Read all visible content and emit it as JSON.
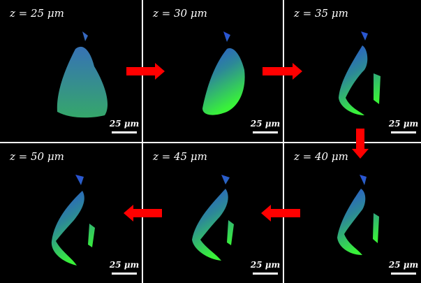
{
  "panels": [
    {
      "label": "z = 25 μm",
      "scale_bar": "25 μm"
    },
    {
      "label": "z = 30 μm",
      "scale_bar": "25 μm"
    },
    {
      "label": "z = 35 μm",
      "scale_bar": "25 μm"
    },
    {
      "label": "z = 40 μm",
      "scale_bar": "25 μm"
    },
    {
      "label": "z = 45 μm",
      "scale_bar": "25 μm"
    },
    {
      "label": "z = 50 μm",
      "scale_bar": "25 μm"
    }
  ]
}
